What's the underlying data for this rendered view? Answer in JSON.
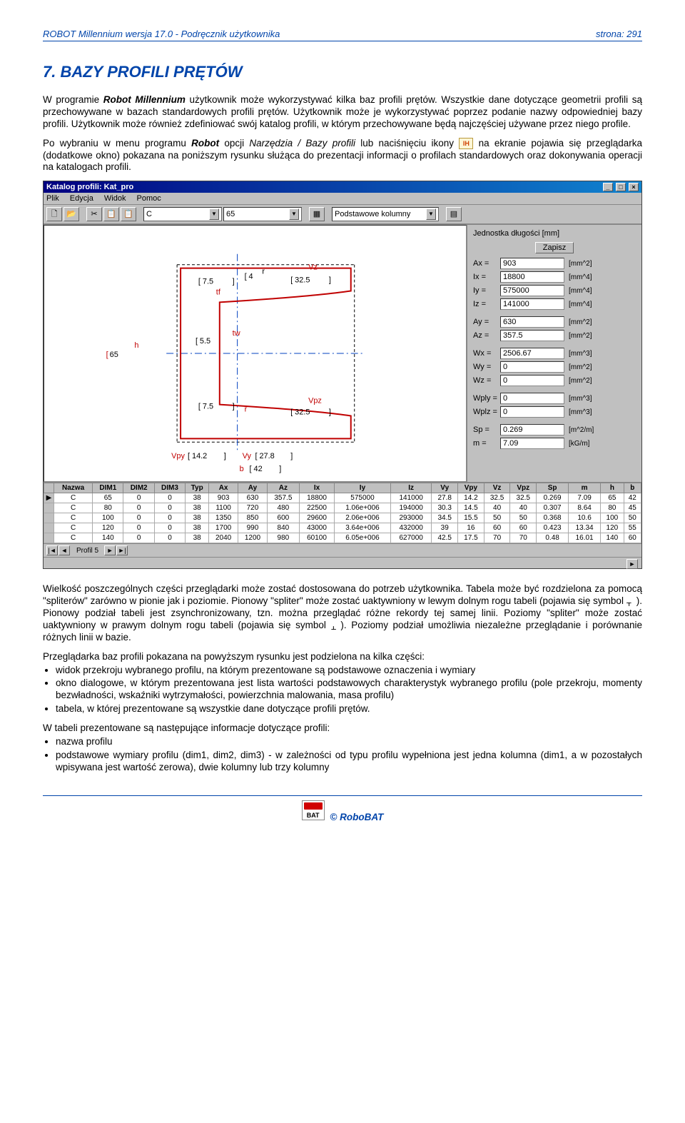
{
  "header": {
    "left": "ROBOT Millennium wersja 17.0 - Podręcznik użytkownika",
    "right": "strona: 291"
  },
  "section_title": "7. BAZY PROFILI PRĘTÓW",
  "para1_a": "W programie ",
  "para1_b": "Robot Millennium",
  "para1_c": " użytkownik może wykorzystywać kilka baz profili prętów. Wszystkie dane dotyczące geometrii profili są przechowywane w bazach standardowych profili prętów. Użytkownik może je wykorzystywać poprzez podanie nazwy odpowiedniej bazy profili. Użytkownik może również zdefiniować swój katalog profili, w którym przechowywane będą najczęściej używane przez niego profile.",
  "para2_a": "Po wybraniu w menu programu ",
  "para2_b": "Robot",
  "para2_c": " opcji ",
  "para2_d": "Narzędzia / Bazy profili",
  "para2_e": " lub naciśnięciu ikony ",
  "para2_f": " na ekranie pojawia się przeglądarka (dodatkowe okno) pokazana na poniższym rysunku służąca do prezentacji informacji o profilach standardowych oraz dokonywania operacji na katalogach profili.",
  "screenshot": {
    "title": "Katalog profili: Kat_pro",
    "menus": [
      "Plik",
      "Edycja",
      "Widok",
      "Pomoc"
    ],
    "toolbar_icons": [
      "🗋",
      "📂",
      "✂",
      "📋",
      "📋"
    ],
    "combo1": "C",
    "combo2": "65",
    "combo3": "Podstawowe kolumny",
    "props": {
      "unit_label": "Jednostka długości [mm]",
      "save_btn": "Zapisz",
      "rows": [
        {
          "k": "Ax =",
          "v": "903",
          "u": "[mm^2]"
        },
        {
          "k": "Ix =",
          "v": "18800",
          "u": "[mm^4]"
        },
        {
          "k": "Iy =",
          "v": "575000",
          "u": "[mm^4]"
        },
        {
          "k": "Iz =",
          "v": "141000",
          "u": "[mm^4]"
        },
        {
          "gap": true
        },
        {
          "k": "Ay =",
          "v": "630",
          "u": "[mm^2]"
        },
        {
          "k": "Az =",
          "v": "357.5",
          "u": "[mm^2]"
        },
        {
          "gap": true
        },
        {
          "k": "Wx =",
          "v": "2506.67",
          "u": "[mm^3]"
        },
        {
          "k": "Wy =",
          "v": "0",
          "u": "[mm^2]"
        },
        {
          "k": "Wz =",
          "v": "0",
          "u": "[mm^2]"
        },
        {
          "gap": true
        },
        {
          "k": "Wply =",
          "v": "0",
          "u": "[mm^3]"
        },
        {
          "k": "Wplz =",
          "v": "0",
          "u": "[mm^3]"
        },
        {
          "gap": true
        },
        {
          "k": "Sp =",
          "v": "0.269",
          "u": "[m^2/m]"
        },
        {
          "k": "m =",
          "v": "7.09",
          "u": "[kG/m]"
        }
      ]
    },
    "diagram": {
      "h": "65",
      "tf1": "7.5",
      "tf_label": "tf",
      "r1": "4",
      "vz": "32.5",
      "tw_label": "tw",
      "tw": "5.5",
      "tf2": "7.5",
      "r2": "",
      "vpz": "32.5",
      "vpy": "14.2",
      "vy": "27.8",
      "b": "42",
      "r_label": "r",
      "h_label": "h",
      "vz_label": "Vz",
      "vpz_label": "Vpz",
      "vpy_label": "Vpy",
      "vy_label": "Vy",
      "b_label": "b"
    },
    "table": {
      "headers": [
        "Nazwa",
        "DIM1",
        "DIM2",
        "DIM3",
        "Typ",
        "Ax",
        "Ay",
        "Az",
        "Ix",
        "Iy",
        "Iz",
        "Vy",
        "Vpy",
        "Vz",
        "Vpz",
        "Sp",
        "m",
        "h",
        "b"
      ],
      "rows": [
        [
          "C",
          "65",
          "0",
          "0",
          "38",
          "903",
          "630",
          "357.5",
          "18800",
          "575000",
          "141000",
          "27.8",
          "14.2",
          "32.5",
          "32.5",
          "0.269",
          "7.09",
          "65",
          "42"
        ],
        [
          "C",
          "80",
          "0",
          "0",
          "38",
          "1100",
          "720",
          "480",
          "22500",
          "1.06e+006",
          "194000",
          "30.3",
          "14.5",
          "40",
          "40",
          "0.307",
          "8.64",
          "80",
          "45"
        ],
        [
          "C",
          "100",
          "0",
          "0",
          "38",
          "1350",
          "850",
          "600",
          "29600",
          "2.06e+006",
          "293000",
          "34.5",
          "15.5",
          "50",
          "50",
          "0.368",
          "10.6",
          "100",
          "50"
        ],
        [
          "C",
          "120",
          "0",
          "0",
          "38",
          "1700",
          "990",
          "840",
          "43000",
          "3.64e+006",
          "432000",
          "39",
          "16",
          "60",
          "60",
          "0.423",
          "13.34",
          "120",
          "55"
        ],
        [
          "C",
          "140",
          "0",
          "0",
          "38",
          "2040",
          "1200",
          "980",
          "60100",
          "6.05e+006",
          "627000",
          "42.5",
          "17.5",
          "70",
          "70",
          "0.48",
          "16.01",
          "140",
          "60"
        ]
      ],
      "nav_label": "Profil 5"
    }
  },
  "para3_a": "Wielkość poszczególnych części przeglądarki może zostać dostosowana do potrzeb użytkownika. Tabela może być rozdzielona za pomocą \"spliterów\" zarówno w pionie jak i poziomie. Pionowy \"spliter\" może zostać uaktywniony w lewym dolnym rogu tabeli (pojawia się symbol ",
  "para3_b": "). Pionowy podział tabeli jest zsynchronizowany, tzn. można przeglądać różne rekordy tej samej linii. Poziomy \"spliter\" może zostać uaktywniony w prawym dolnym rogu tabeli (pojawia się symbol ",
  "para3_c": "). Poziomy podział umożliwia niezależne przeglądanie i porównanie różnych linii w bazie.",
  "para4": "Przeglądarka baz profili pokazana na powyższym rysunku jest podzielona na kilka części:",
  "bullets1": [
    "widok przekroju wybranego profilu, na którym prezentowane są podstawowe oznaczenia i wymiary",
    "okno dialogowe, w którym prezentowana jest lista wartości podstawowych charakterystyk wybranego profilu (pole przekroju, momenty bezwładności, wskaźniki wytrzymałości, powierzchnia malowania, masa profilu)",
    "tabela, w której prezentowane są wszystkie dane dotyczące profili prętów."
  ],
  "para5": "W tabeli prezentowane są następujące informacje dotyczące profili:",
  "bullets2": [
    "nazwa profilu",
    "podstawowe wymiary profilu (dim1, dim2, dim3) - w zależności od typu profilu wypełniona jest jedna kolumna (dim1, a w pozostałych wpisywana jest wartość zerowa), dwie kolumny lub trzy kolumny"
  ],
  "footer_text": "© RoboBAT"
}
